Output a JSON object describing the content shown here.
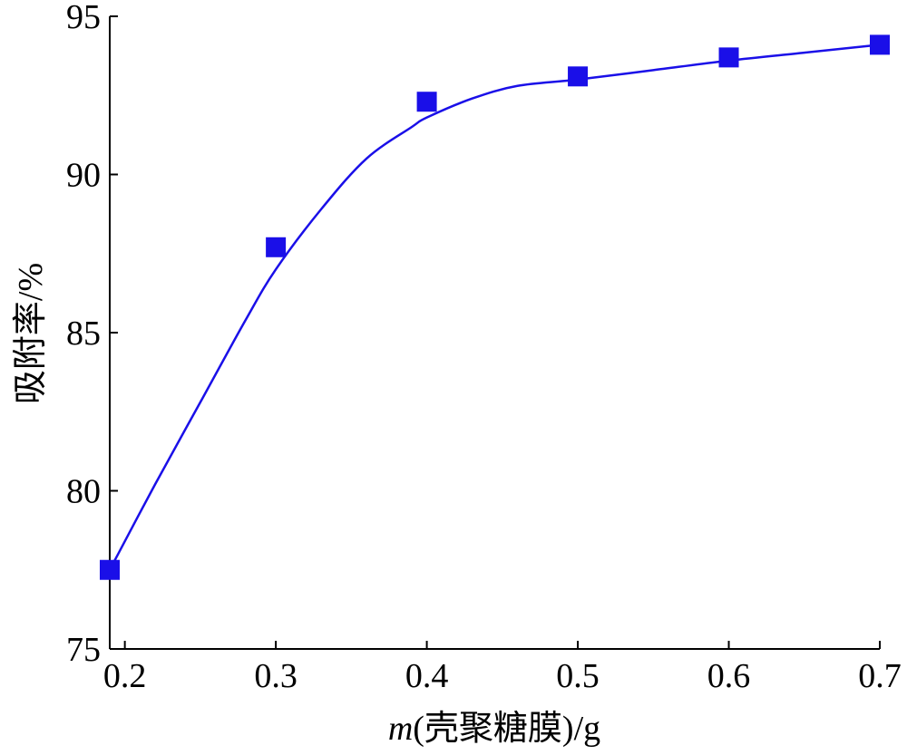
{
  "chart_data": {
    "type": "scatter",
    "title": "",
    "xlabel_var": "m",
    "xlabel_rest": "(壳聚糖膜)/g",
    "ylabel": "吸附率/%",
    "xlim": [
      0.19,
      0.7
    ],
    "ylim": [
      75,
      95
    ],
    "x_ticks": [
      0.2,
      0.3,
      0.4,
      0.5,
      0.6,
      0.7
    ],
    "x_tick_labels": [
      "0.2",
      "0.3",
      "0.4",
      "0.5",
      "0.6",
      "0.7"
    ],
    "y_ticks": [
      75,
      80,
      85,
      90,
      95
    ],
    "y_tick_labels": [
      "75",
      "80",
      "85",
      "90",
      "95"
    ],
    "grid": false,
    "series": [
      {
        "color": "#1a0fe8",
        "marker": "square",
        "points": [
          {
            "x": 0.19,
            "y": 77.5
          },
          {
            "x": 0.3,
            "y": 87.7
          },
          {
            "x": 0.4,
            "y": 92.3
          },
          {
            "x": 0.5,
            "y": 93.1
          },
          {
            "x": 0.6,
            "y": 93.7
          },
          {
            "x": 0.7,
            "y": 94.1
          }
        ],
        "fit_curve": [
          {
            "x": 0.19,
            "y": 77.5
          },
          {
            "x": 0.22,
            "y": 80.2
          },
          {
            "x": 0.25,
            "y": 82.8
          },
          {
            "x": 0.28,
            "y": 85.4
          },
          {
            "x": 0.3,
            "y": 87.0
          },
          {
            "x": 0.33,
            "y": 88.9
          },
          {
            "x": 0.36,
            "y": 90.5
          },
          {
            "x": 0.39,
            "y": 91.5
          },
          {
            "x": 0.4,
            "y": 91.8
          },
          {
            "x": 0.43,
            "y": 92.4
          },
          {
            "x": 0.46,
            "y": 92.8
          },
          {
            "x": 0.5,
            "y": 93.0
          },
          {
            "x": 0.55,
            "y": 93.3
          },
          {
            "x": 0.6,
            "y": 93.6
          },
          {
            "x": 0.65,
            "y": 93.85
          },
          {
            "x": 0.7,
            "y": 94.1
          }
        ]
      }
    ]
  }
}
